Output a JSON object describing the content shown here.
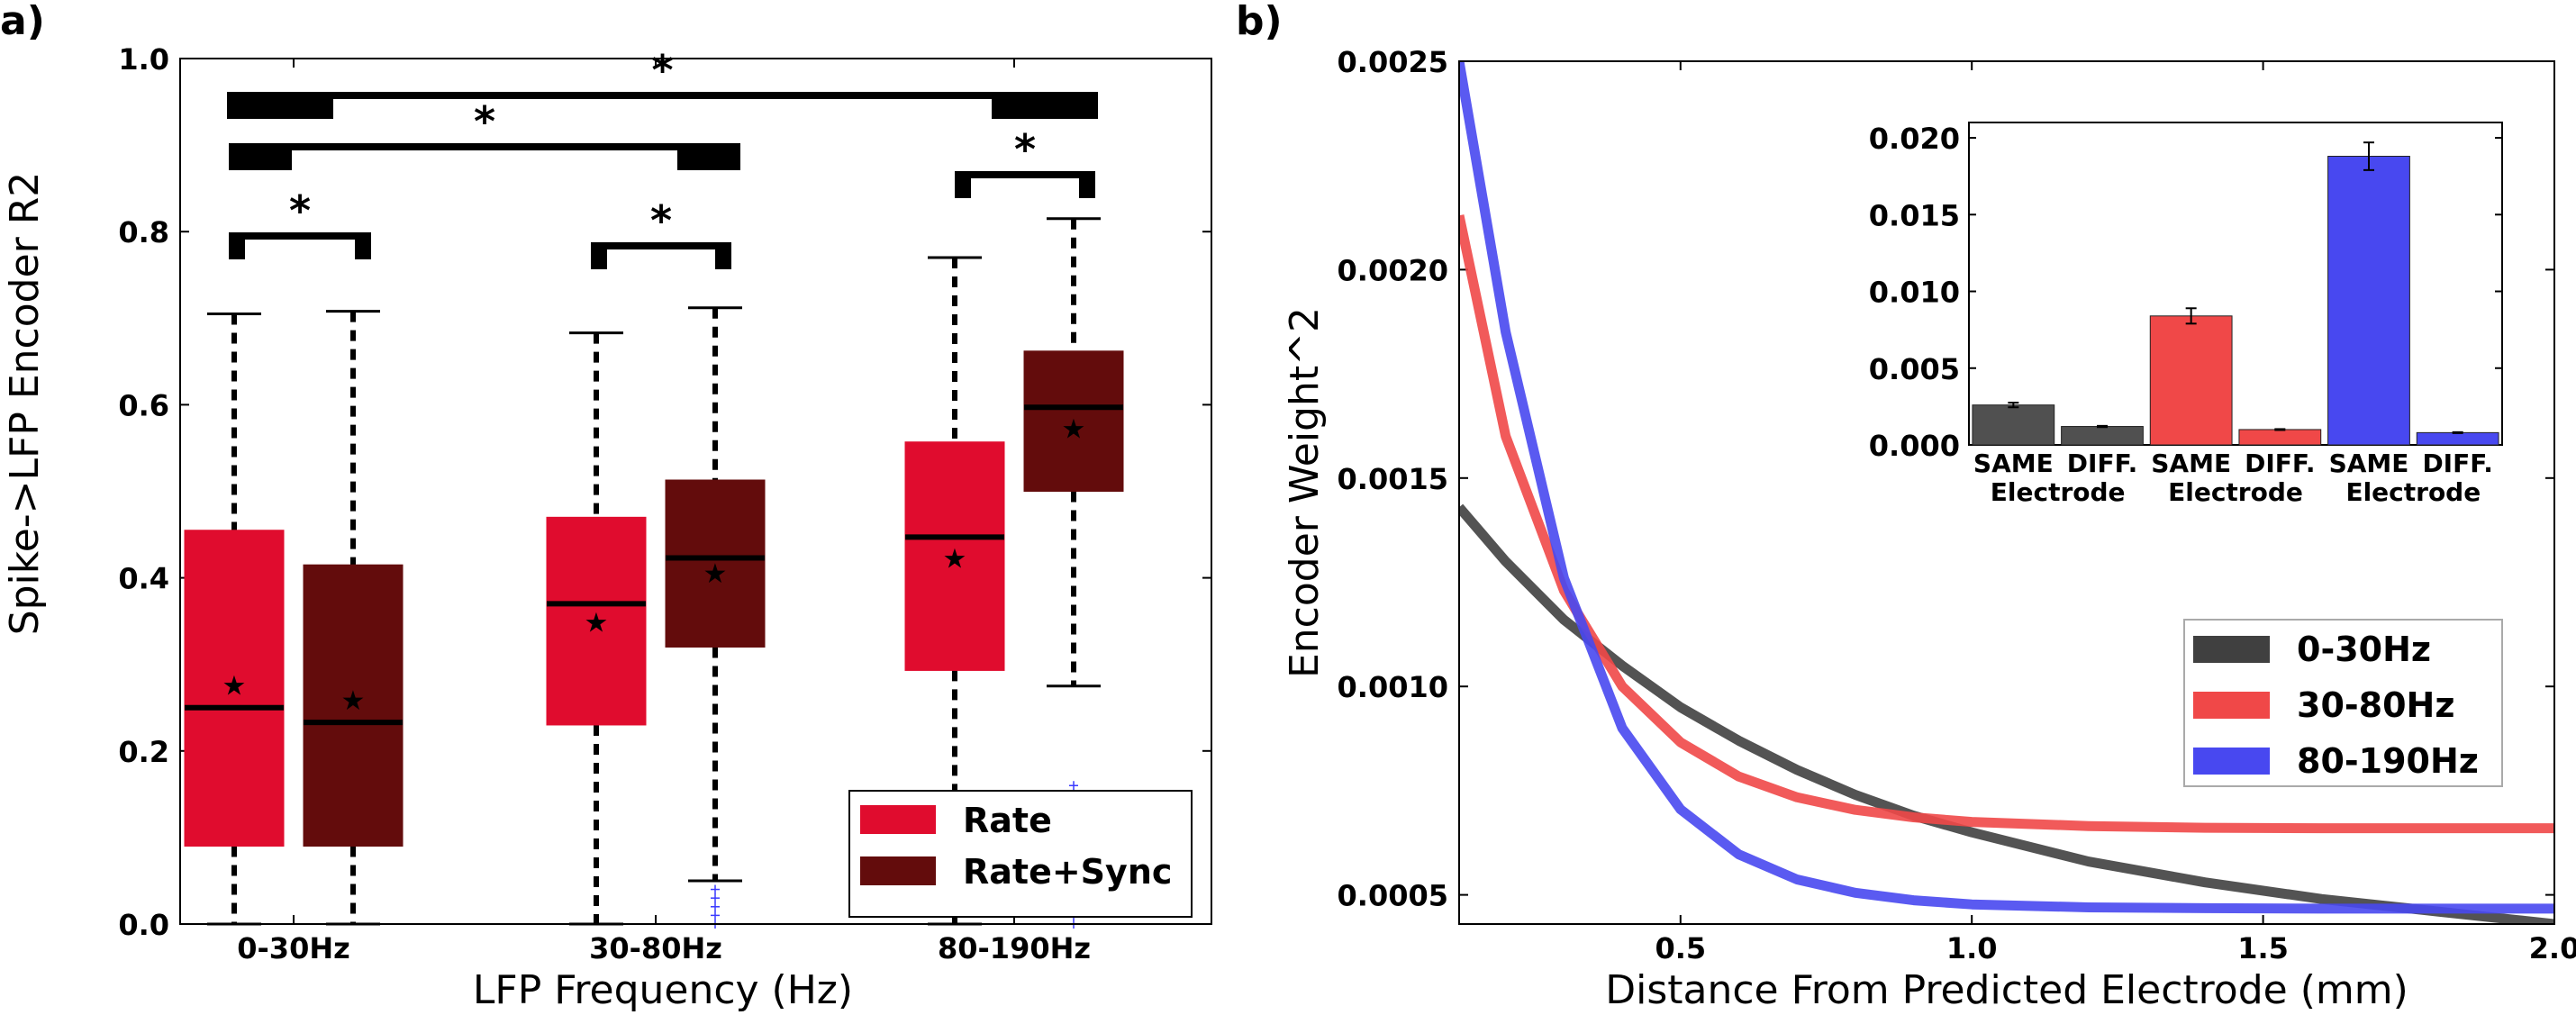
{
  "chart_data": [
    {
      "type": "box",
      "panel_label": "a)",
      "xlabel": "LFP Frequency (Hz)",
      "ylabel": "Spike->LFP Encoder R2",
      "ylim": [
        0.0,
        1.0
      ],
      "yticks": [
        "0.0",
        "0.2",
        "0.4",
        "0.6",
        "0.8",
        "1.0"
      ],
      "categories": [
        "0-30Hz",
        "30-80Hz",
        "80-190Hz"
      ],
      "legend": {
        "position": "lower-right",
        "entries": [
          {
            "name": "Rate",
            "color": "#e00c2e"
          },
          {
            "name": "Rate+Sync",
            "color": "#630c0c"
          }
        ]
      },
      "series": [
        {
          "name": "Rate",
          "color": "#e00c2e",
          "boxes": [
            {
              "whislo": 0.0,
              "q1": 0.09,
              "med": 0.25,
              "q3": 0.455,
              "whishi": 0.705,
              "mean": 0.275
            },
            {
              "whislo": 0.0,
              "q1": 0.23,
              "med": 0.37,
              "q3": 0.47,
              "whishi": 0.683,
              "mean": 0.348
            },
            {
              "whislo": 0.0,
              "q1": 0.293,
              "med": 0.447,
              "q3": 0.557,
              "whishi": 0.77,
              "mean": 0.422
            }
          ]
        },
        {
          "name": "Rate+Sync",
          "color": "#630c0c",
          "boxes": [
            {
              "whislo": 0.0,
              "q1": 0.09,
              "med": 0.233,
              "q3": 0.415,
              "whishi": 0.708,
              "mean": 0.258
            },
            {
              "whislo": 0.05,
              "q1": 0.32,
              "med": 0.423,
              "q3": 0.513,
              "whishi": 0.712,
              "mean": 0.405
            },
            {
              "whislo": 0.275,
              "q1": 0.5,
              "med": 0.597,
              "q3": 0.662,
              "whishi": 0.815,
              "mean": 0.572
            }
          ]
        }
      ],
      "outliers": [
        {
          "box": "30-80Hz Rate+Sync",
          "values": [
            0.0,
            0.01,
            0.02,
            0.03,
            0.04
          ]
        },
        {
          "box": "80-190Hz Rate+Sync",
          "values": [
            0.0,
            0.01,
            0.02,
            0.03,
            0.05,
            0.15,
            0.16
          ]
        }
      ],
      "significance": [
        {
          "from": "0-30Hz Rate",
          "to": "0-30Hz Rate+Sync",
          "label": "*"
        },
        {
          "from": "30-80Hz Rate",
          "to": "30-80Hz Rate+Sync",
          "label": "*"
        },
        {
          "from": "80-190Hz Rate",
          "to": "80-190Hz Rate+Sync",
          "label": "*"
        },
        {
          "from": "0-30Hz",
          "to": "30-80Hz",
          "label": "*"
        },
        {
          "from": "0-30Hz",
          "to": "80-190Hz",
          "label": "*"
        }
      ]
    },
    {
      "type": "line",
      "panel_label": "b)",
      "xlabel": "Distance From Predicted Electrode (mm)",
      "ylabel": "Encoder Weight^2",
      "xlim": [
        0.12,
        2.0
      ],
      "ylim": [
        0.00043,
        0.0025
      ],
      "xticks": [
        "0.5",
        "1.0",
        "1.5",
        "2.0"
      ],
      "yticks": [
        "0.0005",
        "0.0010",
        "0.0015",
        "0.0020",
        "0.0025"
      ],
      "legend": {
        "position": "lower-right"
      },
      "series": [
        {
          "name": "0-30Hz",
          "color": "#404040",
          "x": [
            0.12,
            0.2,
            0.3,
            0.4,
            0.5,
            0.6,
            0.7,
            0.8,
            0.9,
            1.0,
            1.2,
            1.4,
            1.6,
            1.8,
            2.0
          ],
          "y": [
            0.00143,
            0.0013,
            0.00116,
            0.00105,
            0.00095,
            0.00087,
            0.0008,
            0.00074,
            0.00069,
            0.00065,
            0.00058,
            0.00053,
            0.00049,
            0.00046,
            0.00043
          ]
        },
        {
          "name": "30-80Hz",
          "color": "#f04848",
          "x": [
            0.12,
            0.2,
            0.3,
            0.4,
            0.5,
            0.6,
            0.7,
            0.8,
            0.9,
            1.0,
            1.2,
            1.4,
            1.6,
            1.8,
            2.0
          ],
          "y": [
            0.00213,
            0.0016,
            0.00123,
            0.001,
            0.000866,
            0.000784,
            0.000734,
            0.000704,
            0.000686,
            0.000675,
            0.000665,
            0.000661,
            0.00066,
            0.00066,
            0.00066
          ]
        },
        {
          "name": "80-190Hz",
          "color": "#4848f0",
          "x": [
            0.12,
            0.2,
            0.3,
            0.4,
            0.5,
            0.6,
            0.7,
            0.8,
            0.9,
            1.0,
            1.2,
            1.4,
            1.6,
            1.8,
            2.0
          ],
          "y": [
            0.0025,
            0.00185,
            0.00126,
            0.0009,
            0.000705,
            0.000597,
            0.000537,
            0.000505,
            0.000487,
            0.000477,
            0.00047,
            0.000468,
            0.000467,
            0.000467,
            0.000467
          ]
        }
      ],
      "inset": {
        "type": "bar",
        "ylim": [
          0.0,
          0.021
        ],
        "yticks": [
          "0.000",
          "0.005",
          "0.010",
          "0.015",
          "0.020"
        ],
        "group_labels": [
          [
            "SAME",
            "DIFF."
          ],
          [
            "SAME",
            "DIFF."
          ],
          [
            "SAME",
            "DIFF."
          ]
        ],
        "group_sublabel": "Electrode",
        "bars": [
          {
            "group": 0,
            "label": "SAME",
            "value": 0.0026,
            "err": 0.00015,
            "color": "#505050"
          },
          {
            "group": 0,
            "label": "DIFF.",
            "value": 0.0012,
            "err": 4e-05,
            "color": "#505050"
          },
          {
            "group": 1,
            "label": "SAME",
            "value": 0.0084,
            "err": 0.0005,
            "color": "#f04848"
          },
          {
            "group": 1,
            "label": "DIFF.",
            "value": 0.001,
            "err": 3e-05,
            "color": "#f04848"
          },
          {
            "group": 2,
            "label": "SAME",
            "value": 0.0188,
            "err": 0.0009,
            "color": "#4848f0"
          },
          {
            "group": 2,
            "label": "DIFF.",
            "value": 0.0008,
            "err": 3e-05,
            "color": "#4848f0"
          }
        ]
      }
    }
  ]
}
